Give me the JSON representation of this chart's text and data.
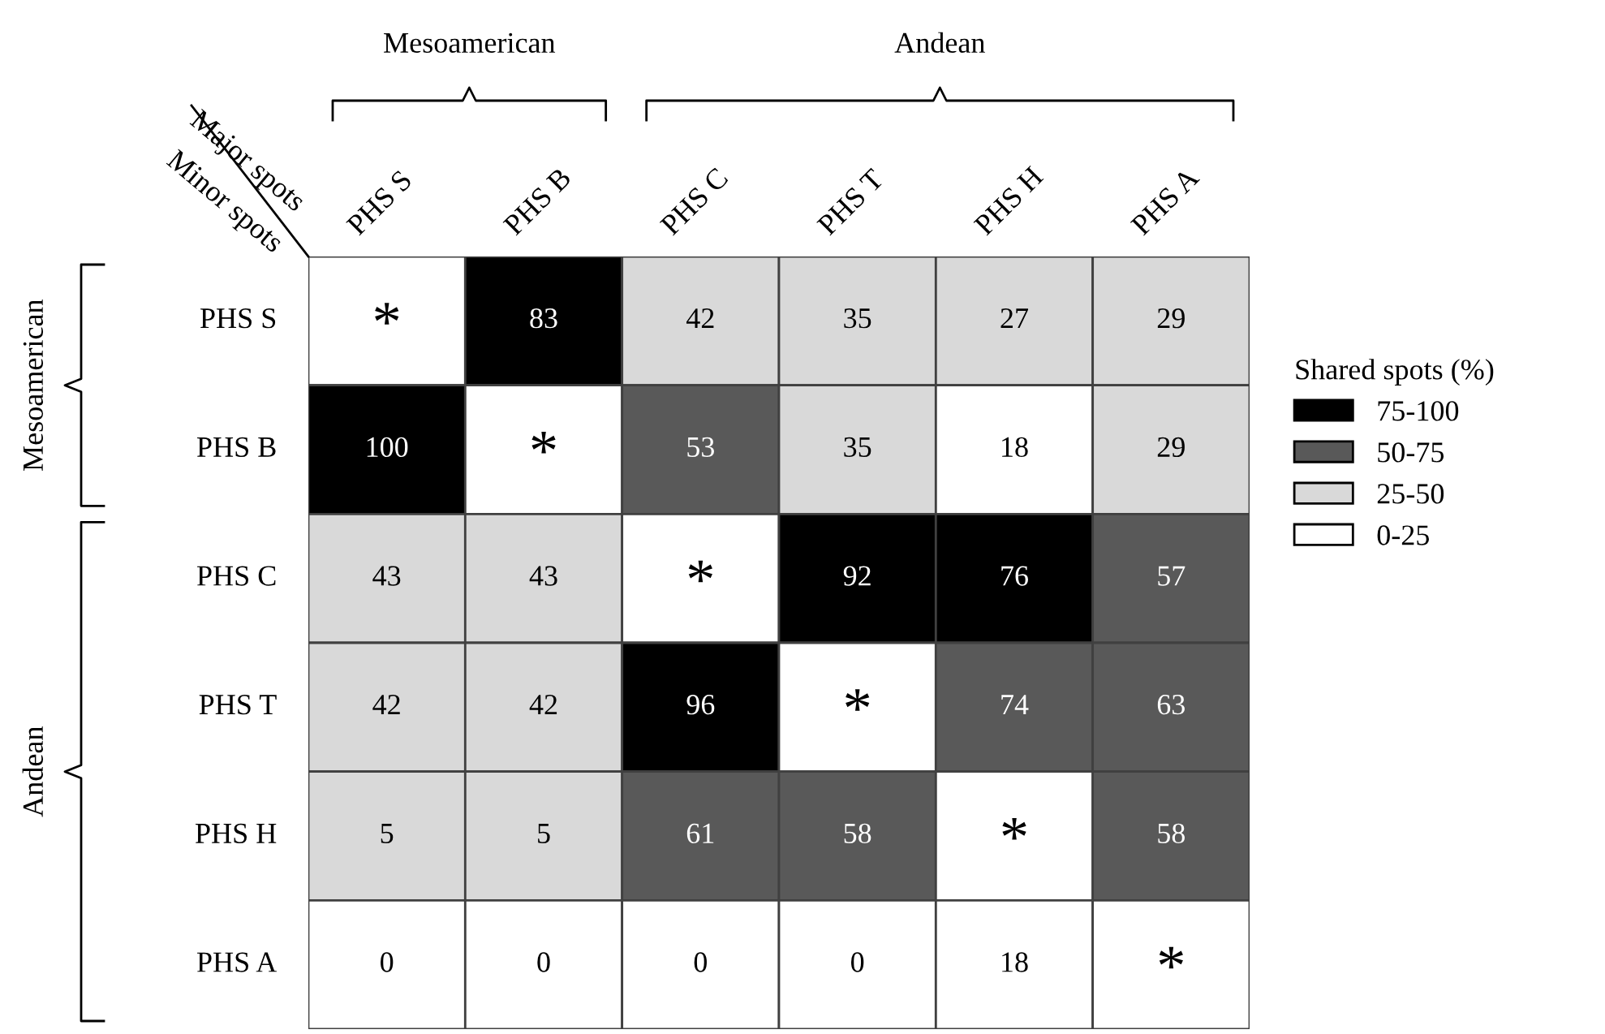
{
  "chart_data": {
    "type": "heatmap",
    "categories": [
      "PHS S",
      "PHS B",
      "PHS C",
      "PHS T",
      "PHS H",
      "PHS A"
    ],
    "y_categories": [
      "PHS S",
      "PHS B",
      "PHS C",
      "PHS T",
      "PHS H",
      "PHS A"
    ],
    "cells": [
      [
        null,
        83,
        42,
        35,
        27,
        29
      ],
      [
        100,
        null,
        53,
        35,
        18,
        29
      ],
      [
        43,
        43,
        null,
        92,
        76,
        57
      ],
      [
        42,
        42,
        96,
        null,
        74,
        63
      ],
      [
        5,
        5,
        61,
        58,
        null,
        58
      ],
      [
        0,
        0,
        0,
        0,
        18,
        null
      ]
    ],
    "colors": [
      [
        "#ffffff",
        "#000000",
        "#d9d9d9",
        "#d9d9d9",
        "#d9d9d9",
        "#d9d9d9"
      ],
      [
        "#000000",
        "#ffffff",
        "#595959",
        "#d9d9d9",
        "#ffffff",
        "#d9d9d9"
      ],
      [
        "#d9d9d9",
        "#d9d9d9",
        "#ffffff",
        "#000000",
        "#000000",
        "#595959"
      ],
      [
        "#d9d9d9",
        "#d9d9d9",
        "#000000",
        "#ffffff",
        "#595959",
        "#595959"
      ],
      [
        "#d9d9d9",
        "#d9d9d9",
        "#595959",
        "#595959",
        "#ffffff",
        "#595959"
      ],
      [
        "#ffffff",
        "#ffffff",
        "#ffffff",
        "#ffffff",
        "#ffffff",
        "#ffffff"
      ]
    ],
    "series": [
      {
        "name": "75-100",
        "color": "#000000",
        "values": [
          null,
          null,
          null,
          null,
          null,
          null
        ]
      },
      {
        "name": "50-75",
        "color": "#595959",
        "values": [
          null,
          null,
          null,
          null,
          null,
          null
        ]
      },
      {
        "name": "25-50",
        "color": "#d9d9d9",
        "values": [
          null,
          null,
          null,
          null,
          null,
          null
        ]
      },
      {
        "name": "0-25",
        "color": "#ffffff",
        "values": [
          null,
          null,
          null,
          null,
          null,
          null
        ]
      }
    ],
    "legend_title": "Shared spots (%)",
    "legend": "right",
    "data_labels": true,
    "cell_labels": [
      [
        "*",
        "83",
        "42",
        "35",
        "27",
        "29"
      ],
      [
        "100",
        "*",
        "53",
        "35",
        "18",
        "29"
      ],
      [
        "43",
        "43",
        "*",
        "92",
        "76",
        "57"
      ],
      [
        "42",
        "42",
        "96",
        "*",
        "74",
        "63"
      ],
      [
        "5",
        "5",
        "61",
        "58",
        "*",
        "58"
      ],
      [
        "0",
        "0",
        "0",
        "0",
        "18",
        "*"
      ]
    ],
    "annotations": [
      "Mesoamerican",
      "Andean",
      "Mesoamerican",
      "Andean",
      "Major spots",
      "Minor spots"
    ]
  }
}
